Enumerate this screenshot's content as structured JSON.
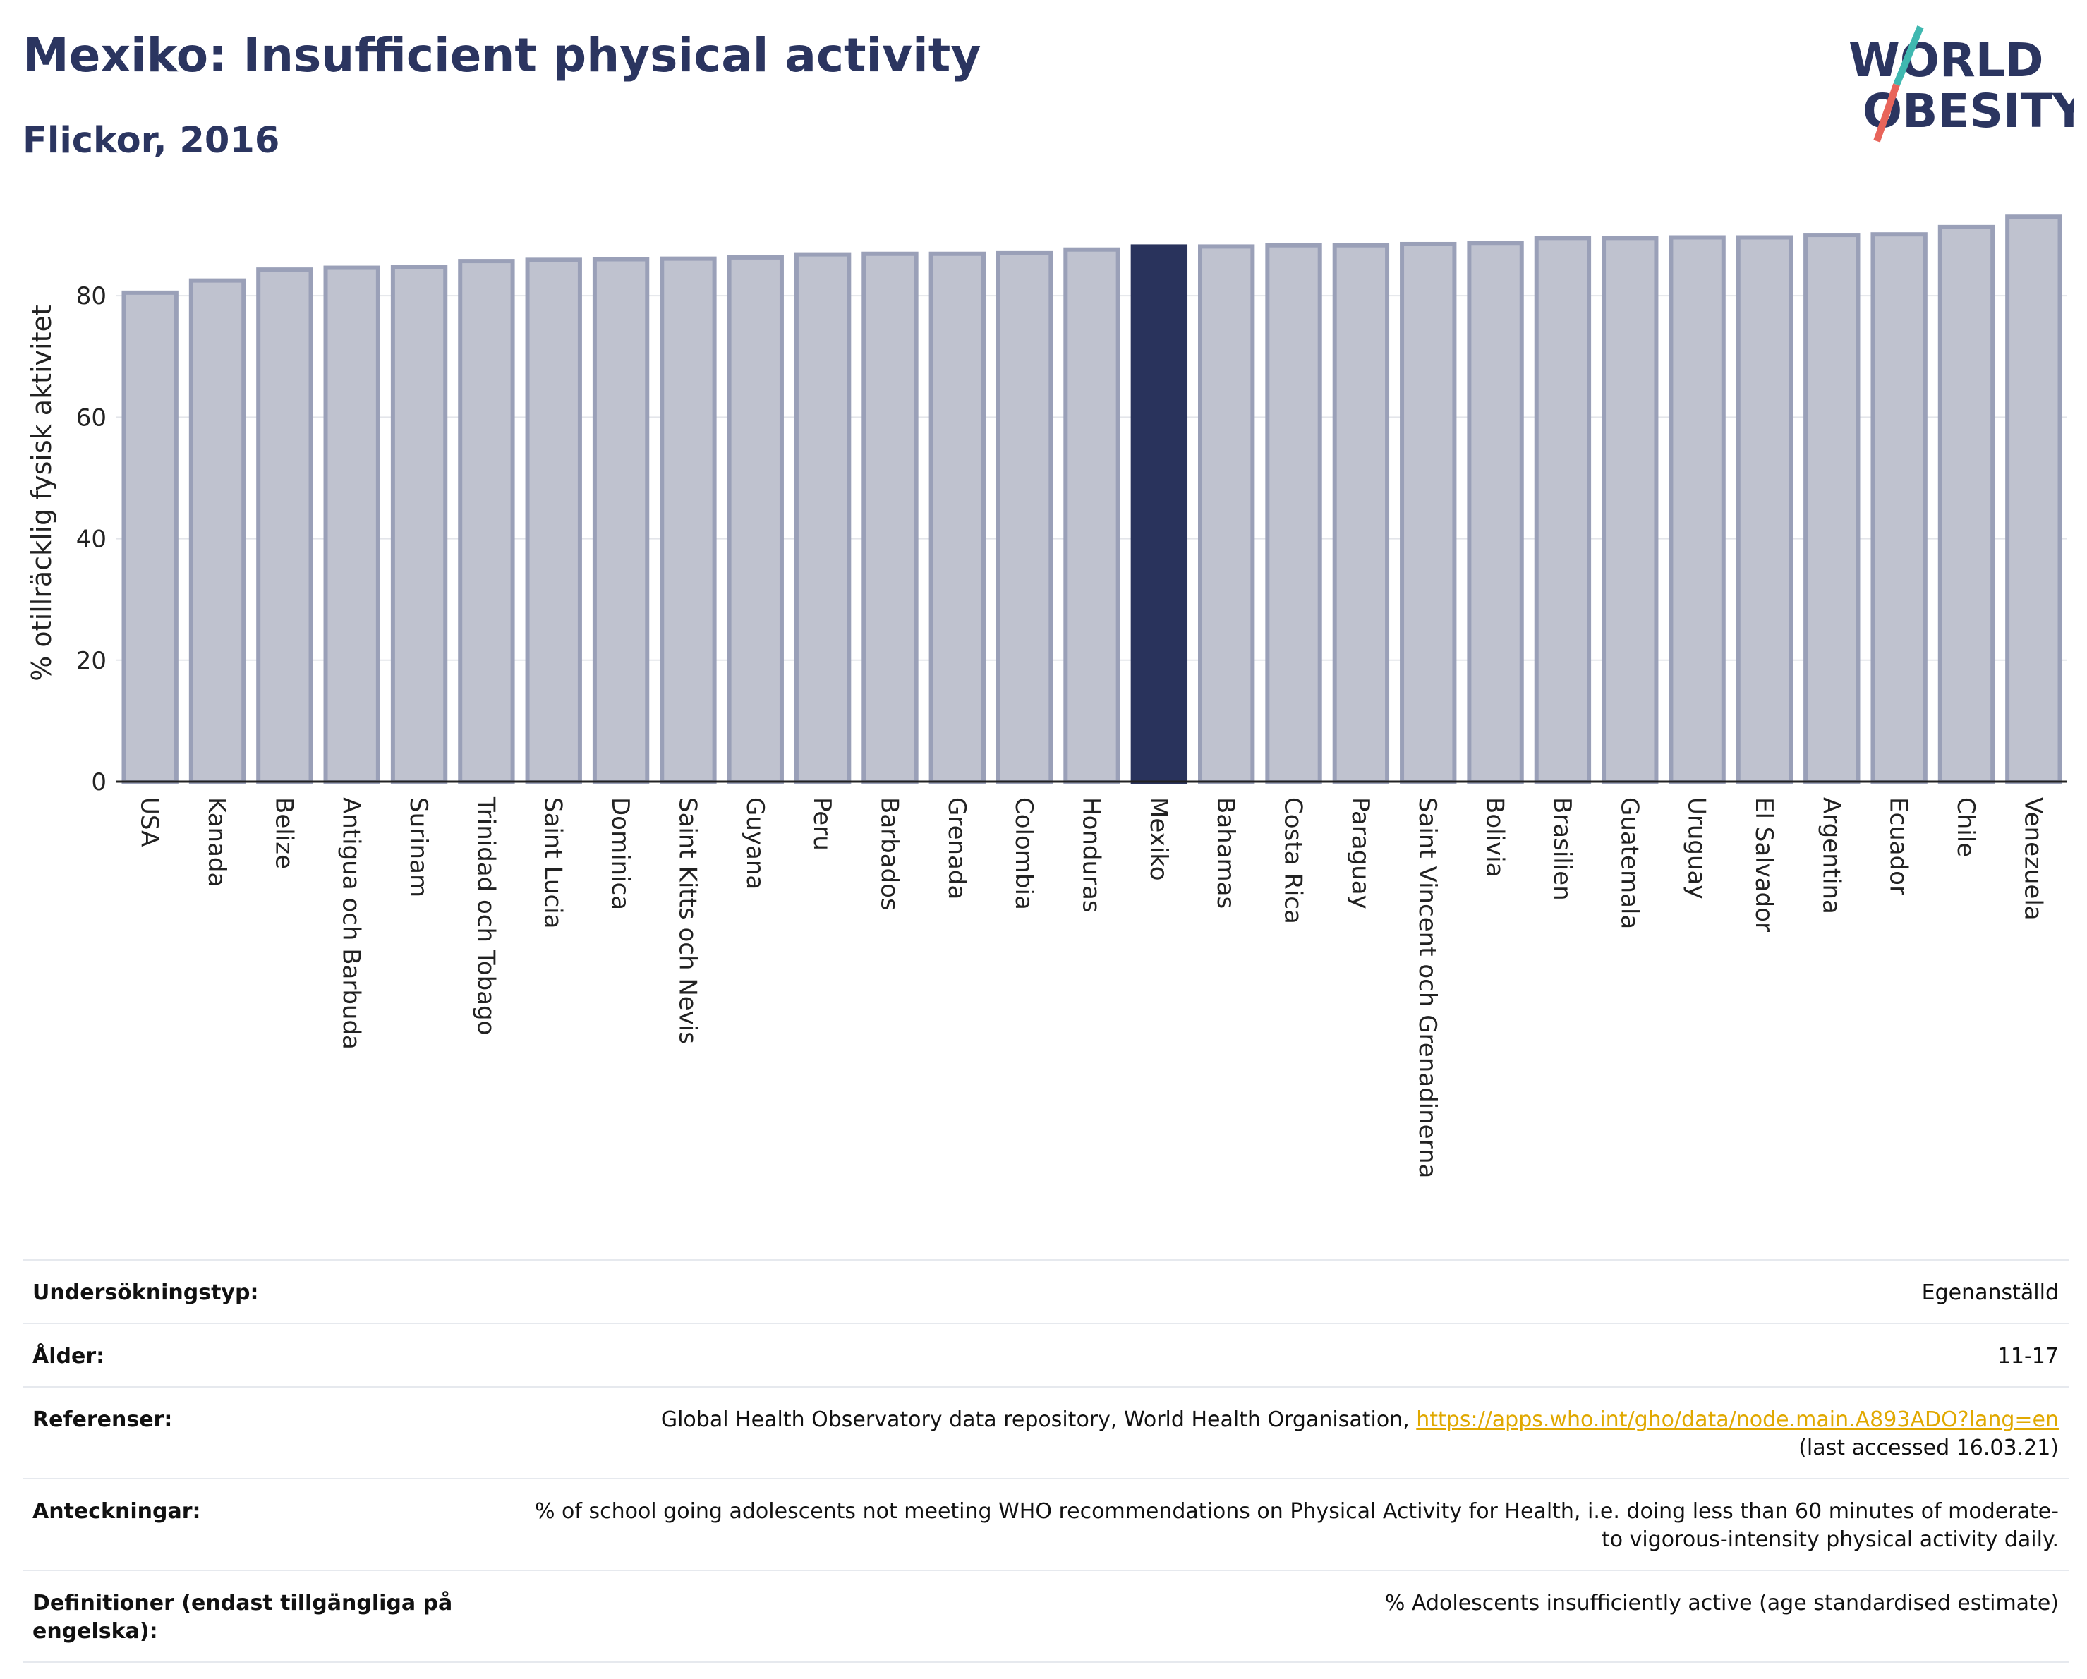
{
  "header": {
    "title": "Mexiko: Insufficient physical activity",
    "subtitle": "Flickor, 2016"
  },
  "logo": {
    "line1": "WORLD",
    "line2": "OBESITY",
    "accent_colors": [
      "#3fb8b0",
      "#e8645a"
    ],
    "text_color": "#2b3560"
  },
  "chart_data": {
    "type": "bar",
    "ylabel": "% otillräcklig fysisk aktivitet",
    "ylim": [
      0,
      95
    ],
    "yticks": [
      0,
      20,
      40,
      60,
      80
    ],
    "grid": true,
    "highlight": "Mexiko",
    "colors": {
      "bar": "#bfc2cf",
      "bar_border": "#9aa0b8",
      "highlight": "#29335c"
    },
    "categories": [
      "USA",
      "Kanada",
      "Belize",
      "Antigua och Barbuda",
      "Surinam",
      "Trinidad och Tobago",
      "Saint Lucia",
      "Dominica",
      "Saint Kitts och Nevis",
      "Guyana",
      "Peru",
      "Barbados",
      "Grenada",
      "Colombia",
      "Honduras",
      "Mexiko",
      "Bahamas",
      "Costa Rica",
      "Paraguay",
      "Saint Vincent och Grenadinerna",
      "Bolivia",
      "Brasilien",
      "Guatemala",
      "Uruguay",
      "El Salvador",
      "Argentina",
      "Ecuador",
      "Chile",
      "Venezuela"
    ],
    "values": [
      80.5,
      82.5,
      84.3,
      84.6,
      84.7,
      85.7,
      85.9,
      86.0,
      86.1,
      86.3,
      86.8,
      86.9,
      86.9,
      87.0,
      87.6,
      88.1,
      88.1,
      88.3,
      88.3,
      88.5,
      88.7,
      89.5,
      89.5,
      89.6,
      89.6,
      90.0,
      90.1,
      91.3,
      93.0
    ]
  },
  "meta": [
    {
      "label": "Undersökningstyp:",
      "value": "Egenanställd"
    },
    {
      "label": "Ålder:",
      "value": "11-17"
    },
    {
      "label": "Referenser:",
      "value": "Global Health Observatory data repository, World Health Organisation, ",
      "link": "https://apps.who.int/gho/data/node.main.A893ADO?lang=en",
      "value_after": "(last accessed 16.03.21)"
    },
    {
      "label": "Anteckningar:",
      "value": "% of school going adolescents not meeting WHO recommendations on Physical Activity for Health, i.e. doing less than 60 minutes of moderate- to vigorous-intensity physical activity daily."
    },
    {
      "label": "Definitioner (endast tillgängliga på engelska):",
      "value": "% Adolescents insufficiently active (age standardised estimate)"
    }
  ]
}
